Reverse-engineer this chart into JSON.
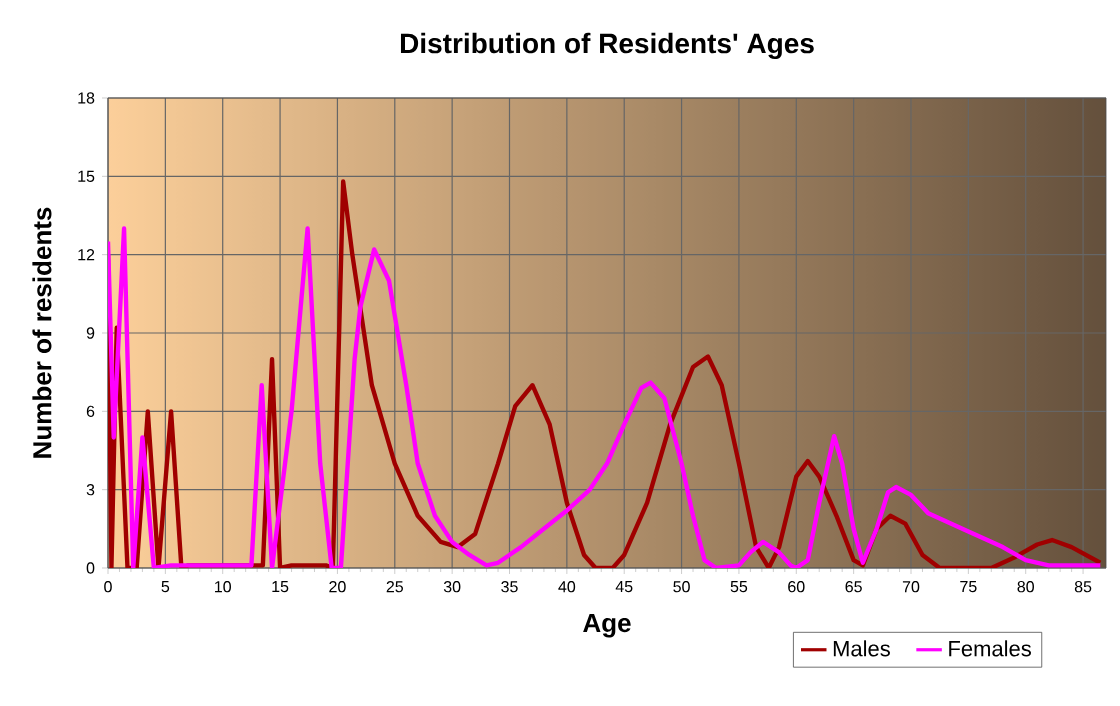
{
  "chart_data": {
    "type": "line",
    "title": "Distribution of Residents' Ages",
    "xlabel": "Age",
    "ylabel": "Number of residents",
    "xlim": [
      0,
      87
    ],
    "xticks": [
      0,
      5,
      10,
      15,
      20,
      25,
      30,
      35,
      40,
      45,
      50,
      55,
      60,
      65,
      70,
      75,
      80,
      85
    ],
    "ylim": [
      0,
      18
    ],
    "yticks": [
      0,
      3,
      6,
      9,
      12,
      15,
      18
    ],
    "grid": true,
    "legend": "bottom right",
    "line_style": "solid",
    "series": [
      {
        "name": "Males",
        "color": "#a00000",
        "x": [
          0,
          0.3,
          0.76,
          1.7,
          2.5,
          3.47,
          4.4,
          5.5,
          6.4,
          7,
          13.5,
          14.3,
          15,
          16,
          19,
          19.6,
          20.5,
          21.3,
          23,
          25,
          27,
          29,
          30.5,
          32,
          34,
          35.5,
          37,
          38.5,
          40,
          41.5,
          42.5,
          44,
          45,
          47,
          49,
          51,
          52.3,
          53.5,
          55,
          56.5,
          57.6,
          58.5,
          60,
          61,
          62,
          63.5,
          65,
          65.8,
          67,
          68.2,
          69.5,
          71,
          72.5,
          77,
          79,
          81,
          82.3,
          84,
          86.5
        ],
        "values": [
          12,
          0,
          9.2,
          0,
          0,
          6,
          0,
          6,
          0,
          0.1,
          0.1,
          8,
          0,
          0.1,
          0.1,
          0,
          14.8,
          12,
          7,
          4,
          2,
          1,
          0.8,
          1.3,
          4,
          6.2,
          7,
          5.5,
          2.5,
          0.5,
          0,
          0,
          0.5,
          2.5,
          5.5,
          7.7,
          8.1,
          7,
          4,
          0.8,
          0,
          0.8,
          3.5,
          4.1,
          3.5,
          2,
          0.3,
          0.1,
          1.5,
          2,
          1.7,
          0.5,
          0,
          0,
          0.4,
          0.9,
          1.07,
          0.8,
          0.2
        ]
      },
      {
        "name": "Females",
        "color": "#ff00ff",
        "x": [
          0,
          0.5,
          1.4,
          2.2,
          3,
          4,
          5.5,
          12.5,
          13.4,
          14.3,
          16,
          17.4,
          18.5,
          19.5,
          20.3,
          21.5,
          22,
          23.2,
          24.5,
          26,
          27,
          28.5,
          30,
          31.5,
          33,
          34,
          36,
          38,
          40,
          42,
          43.5,
          45,
          46.5,
          47.3,
          48.5,
          50,
          51,
          52,
          53,
          55,
          56,
          57.1,
          58.5,
          59.5,
          60,
          61,
          62,
          63.3,
          64,
          65,
          65.8,
          67,
          68,
          68.7,
          70,
          71.5,
          75,
          78,
          80,
          82,
          86.5
        ],
        "values": [
          12.5,
          5,
          13,
          0,
          5,
          0,
          0.1,
          0.1,
          7,
          0,
          6,
          13,
          4,
          0,
          0,
          8,
          10,
          12.2,
          11,
          7,
          4,
          2,
          1,
          0.5,
          0.1,
          0.2,
          0.8,
          1.5,
          2.2,
          3,
          4,
          5.5,
          6.9,
          7.1,
          6.5,
          4,
          2,
          0.3,
          0,
          0.1,
          0.6,
          1,
          0.6,
          0.1,
          0,
          0.3,
          2.5,
          5.05,
          4,
          1.5,
          0.2,
          1.5,
          2.9,
          3.1,
          2.8,
          2.1,
          1.4,
          0.8,
          0.3,
          0.1,
          0.1
        ]
      }
    ]
  }
}
